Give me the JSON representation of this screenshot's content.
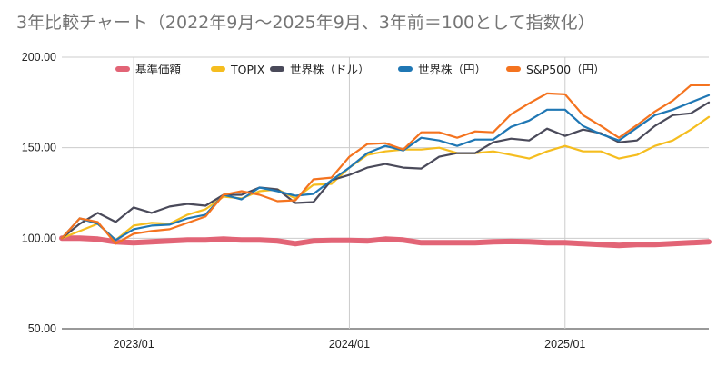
{
  "chart_data": {
    "type": "line",
    "title": "3年比較チャート（2022年9月〜2025年9月、3年前＝100として指数化）",
    "xlabel": "",
    "ylabel": "",
    "ylim": [
      50,
      200
    ],
    "y_ticks": [
      "50.00",
      "100.00",
      "150.00",
      "200.00"
    ],
    "x_ticks": [
      "2023/01",
      "2024/01",
      "2025/01"
    ],
    "grid": true,
    "legend_position": "top",
    "x": [
      "2022/09",
      "2022/10",
      "2022/11",
      "2022/12",
      "2023/01",
      "2023/02",
      "2023/03",
      "2023/04",
      "2023/05",
      "2023/06",
      "2023/07",
      "2023/08",
      "2023/09",
      "2023/10",
      "2023/11",
      "2023/12",
      "2024/01",
      "2024/02",
      "2024/03",
      "2024/04",
      "2024/05",
      "2024/06",
      "2024/07",
      "2024/08",
      "2024/09",
      "2024/10",
      "2024/11",
      "2024/12",
      "2025/01",
      "2025/02",
      "2025/03",
      "2025/04",
      "2025/05",
      "2025/06",
      "2025/07",
      "2025/08",
      "2025/09"
    ],
    "series": [
      {
        "name": "基準価額",
        "color": "#e26476",
        "values": [
          100,
          100,
          99.5,
          98,
          97.5,
          98,
          98.5,
          99,
          99,
          99.5,
          99,
          99,
          98.5,
          97,
          98.5,
          98.8,
          98.8,
          98.5,
          99.5,
          99,
          97.5,
          97.5,
          97.5,
          97.5,
          98,
          98.2,
          98,
          97.5,
          97.5,
          97,
          96.5,
          96,
          96.5,
          96.5,
          97,
          97.5,
          98
        ]
      },
      {
        "name": "TOPIX",
        "color": "#f5bd1f",
        "values": [
          100,
          104,
          108,
          99,
          107,
          108.5,
          108,
          113,
          116,
          123,
          122,
          126,
          127,
          122,
          129.5,
          130,
          139,
          146,
          148,
          149,
          149,
          150,
          147,
          147,
          148,
          146,
          144,
          148,
          151,
          148,
          148,
          144,
          146,
          151,
          154,
          160,
          167
        ]
      },
      {
        "name": "世界株（ドル）",
        "color": "#4a4a5a",
        "values": [
          100,
          108,
          114,
          109,
          117,
          114,
          117.5,
          119,
          118,
          124,
          124,
          128,
          127,
          119.5,
          120,
          132,
          135,
          139,
          141,
          139,
          138.5,
          145,
          147,
          147,
          153,
          155,
          154,
          160.5,
          156.5,
          160,
          158,
          153,
          154,
          162,
          168,
          169,
          175
        ]
      },
      {
        "name": "世界株（円）",
        "color": "#1f77b4",
        "values": [
          100,
          111,
          108,
          99,
          105,
          107,
          107.5,
          111,
          113,
          124,
          121.5,
          128,
          126,
          123.5,
          124.5,
          132,
          139,
          147,
          151,
          148.5,
          155.5,
          154,
          151,
          154.5,
          154.5,
          161.5,
          165,
          171,
          171,
          162,
          157.5,
          154,
          161,
          168,
          171,
          175,
          179
        ]
      },
      {
        "name": "S&P500（円）",
        "color": "#f4731f",
        "values": [
          100,
          111,
          109,
          97,
          102.5,
          104,
          105,
          108.5,
          112,
          124,
          126,
          124,
          120.5,
          121,
          132.5,
          133.5,
          145,
          152,
          152.5,
          149,
          158.5,
          158.5,
          155.5,
          159,
          158.5,
          168.5,
          174.5,
          180,
          179.5,
          168,
          162,
          155.5,
          162.5,
          170,
          176,
          184.5,
          184.5
        ]
      }
    ]
  }
}
